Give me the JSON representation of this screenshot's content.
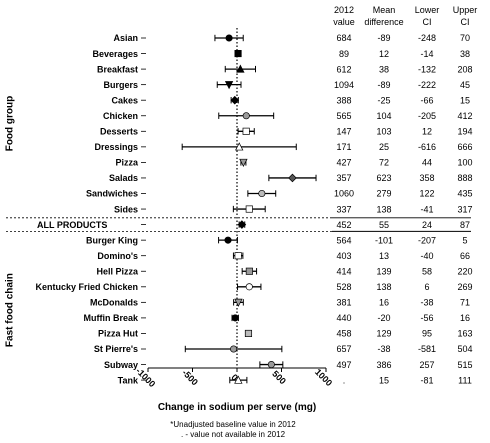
{
  "chart_data": {
    "type": "forest",
    "xlabel": "Change in sodium per serve (mg)",
    "xlim": [
      -1000,
      1000
    ],
    "xticks": [
      -1000,
      -500,
      0,
      500,
      1000
    ],
    "xtick_labels": [
      "-1000",
      "-500",
      "0",
      "500",
      "1000"
    ],
    "groups": [
      {
        "label": "Food group",
        "rows": [
          0,
          11
        ]
      },
      {
        "label": "Fast food chain",
        "rows": [
          13,
          22
        ]
      }
    ],
    "columns": [
      {
        "key": "baseline",
        "header": [
          "2012",
          "value"
        ]
      },
      {
        "key": "mean",
        "header": [
          "Mean",
          "difference"
        ]
      },
      {
        "key": "lower",
        "header": [
          "Lower",
          "CI"
        ]
      },
      {
        "key": "upper",
        "header": [
          "Upper",
          "CI"
        ]
      }
    ],
    "rows": [
      {
        "label": "Asian",
        "baseline": "684",
        "mean": -89,
        "lower": -248,
        "upper": 70,
        "marker": "circle",
        "fill": "#000000"
      },
      {
        "label": "Beverages",
        "baseline": "89",
        "mean": 12,
        "lower": -14,
        "upper": 38,
        "marker": "square",
        "fill": "#000000"
      },
      {
        "label": "Breakfast",
        "baseline": "612",
        "mean": 38,
        "lower": -132,
        "upper": 208,
        "marker": "triangle-up",
        "fill": "#000000"
      },
      {
        "label": "Burgers",
        "baseline": "1094",
        "mean": -89,
        "lower": -222,
        "upper": 45,
        "marker": "triangle-down",
        "fill": "#000000"
      },
      {
        "label": "Cakes",
        "baseline": "388",
        "mean": -25,
        "lower": -66,
        "upper": 15,
        "marker": "diamond",
        "fill": "#000000"
      },
      {
        "label": "Chicken",
        "baseline": "565",
        "mean": 104,
        "lower": -205,
        "upper": 412,
        "marker": "circle",
        "fill": "#9a9a9a"
      },
      {
        "label": "Desserts",
        "baseline": "147",
        "mean": 103,
        "lower": 12,
        "upper": 194,
        "marker": "square",
        "fill": "#ffffff"
      },
      {
        "label": "Dressings",
        "baseline": "171",
        "mean": 25,
        "lower": -616,
        "upper": 666,
        "marker": "triangle-up",
        "fill": "#ffffff"
      },
      {
        "label": "Pizza",
        "baseline": "427",
        "mean": 72,
        "lower": 44,
        "upper": 100,
        "marker": "triangle-down",
        "fill": "#9a9a9a"
      },
      {
        "label": "Salads",
        "baseline": "357",
        "mean": 623,
        "lower": 358,
        "upper": 888,
        "marker": "diamond",
        "fill": "#555555"
      },
      {
        "label": "Sandwiches",
        "baseline": "1060",
        "mean": 279,
        "lower": 122,
        "upper": 435,
        "marker": "circle",
        "fill": "#bbbbbb"
      },
      {
        "label": "Sides",
        "baseline": "337",
        "mean": 138,
        "lower": -41,
        "upper": 317,
        "marker": "square",
        "fill": "#ffffff"
      },
      {
        "label": "ALL PRODUCTS",
        "baseline": "452",
        "mean": 55,
        "lower": 24,
        "upper": 87,
        "marker": "diamond",
        "fill": "#000000"
      },
      {
        "label": "Burger King",
        "baseline": "564",
        "mean": -101,
        "lower": -207,
        "upper": 5,
        "marker": "circle",
        "fill": "#000000"
      },
      {
        "label": "Domino's",
        "baseline": "403",
        "mean": 13,
        "lower": -40,
        "upper": 66,
        "marker": "square",
        "fill": "#ffffff"
      },
      {
        "label": "Hell Pizza",
        "baseline": "414",
        "mean": 139,
        "lower": 58,
        "upper": 220,
        "marker": "square",
        "fill": "#9a9a9a"
      },
      {
        "label": "Kentucky Fried Chicken",
        "baseline": "528",
        "mean": 138,
        "lower": 6,
        "upper": 269,
        "marker": "circle",
        "fill": "#ffffff"
      },
      {
        "label": "McDonalds",
        "baseline": "381",
        "mean": 16,
        "lower": -38,
        "upper": 71,
        "marker": "triangle-down",
        "fill": "#9a9a9a"
      },
      {
        "label": "Muffin Break",
        "baseline": "440",
        "mean": -20,
        "lower": -56,
        "upper": 16,
        "marker": "circle",
        "fill": "#000000"
      },
      {
        "label": "Pizza Hut",
        "baseline": "458",
        "mean": 129,
        "lower": 95,
        "upper": 163,
        "marker": "square",
        "fill": "#bbbbbb"
      },
      {
        "label": "St Pierre's",
        "baseline": "657",
        "mean": -38,
        "lower": -581,
        "upper": 504,
        "marker": "circle",
        "fill": "#9a9a9a"
      },
      {
        "label": "Subway",
        "baseline": "497",
        "mean": 386,
        "lower": 257,
        "upper": 515,
        "marker": "circle",
        "fill": "#9a9a9a"
      },
      {
        "label": "Tank",
        "baseline": ".",
        "mean": 15,
        "lower": -81,
        "upper": 111,
        "marker": "triangle-up",
        "fill": "#ffffff"
      }
    ],
    "footnotes": [
      "*Unadjusted baseline value in 2012",
      ". - value not available in 2012"
    ]
  }
}
